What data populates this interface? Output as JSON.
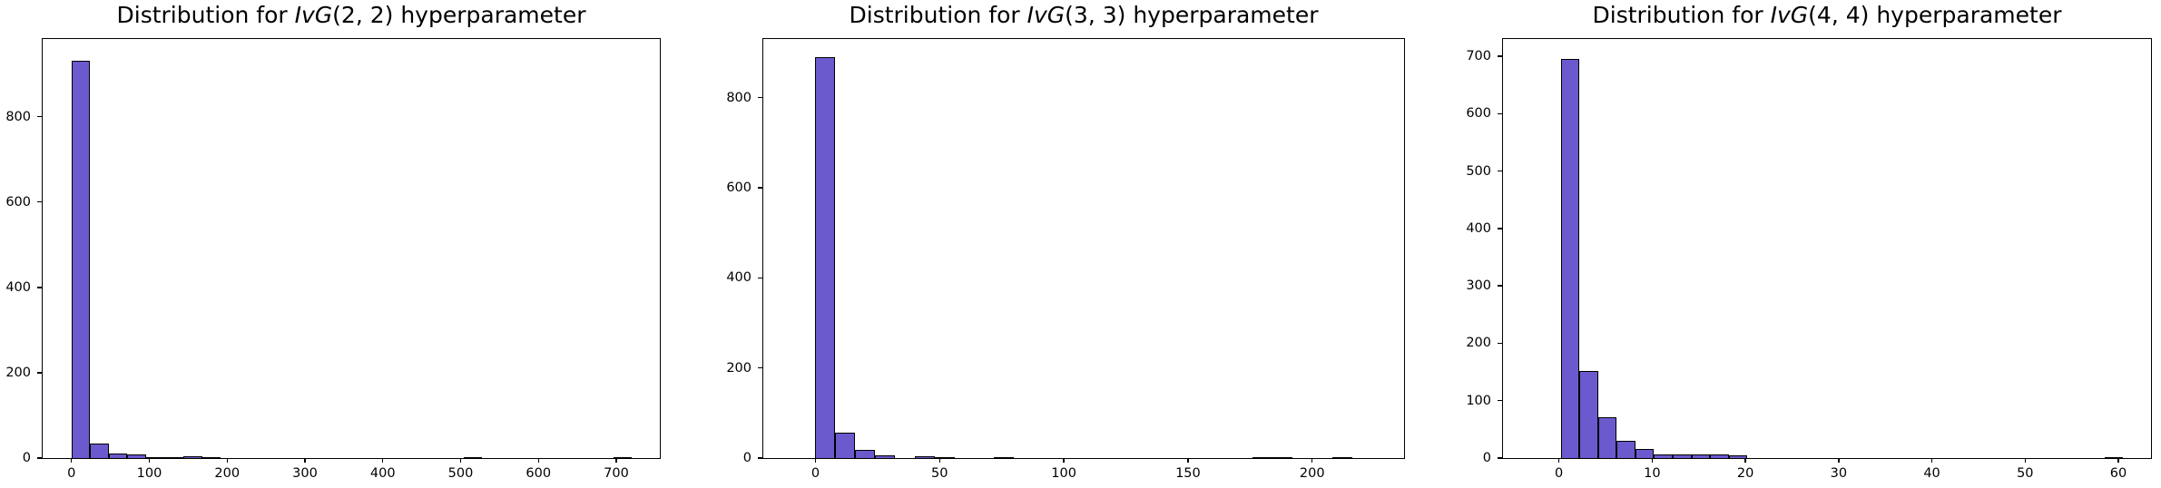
{
  "figure": {
    "background_color": "#ffffff",
    "bar_fill_color": "#6a5acd",
    "bar_edge_color": "#000000",
    "axis_color": "#000000",
    "text_color": "#000000"
  },
  "chart_data": [
    {
      "type": "bar",
      "subtype": "histogram",
      "title": "Distribution for IvG(2, 2) hyperparameter",
      "title_parts": {
        "prefix": "Distribution for ",
        "italic": "IvG",
        "args": "(2, 2)",
        "suffix": " hyperparameter"
      },
      "xlabel": "",
      "ylabel": "",
      "legend": null,
      "grid": false,
      "xlim": [
        -37,
        756
      ],
      "ylim": [
        0,
        982
      ],
      "xticks": [
        0,
        100,
        200,
        300,
        400,
        500,
        600,
        700
      ],
      "yticks": [
        0,
        200,
        400,
        600,
        800
      ],
      "bar_color": "#6a5acd",
      "edge_color": "#000000",
      "bins_note": "each bin is [x_start, x_end, count]",
      "bins": [
        [
          0,
          24,
          932
        ],
        [
          24,
          48,
          34
        ],
        [
          48,
          72,
          11
        ],
        [
          72,
          96,
          8
        ],
        [
          96,
          120,
          2
        ],
        [
          120,
          144,
          1
        ],
        [
          144,
          168,
          5
        ],
        [
          168,
          192,
          2
        ],
        [
          504,
          528,
          2
        ],
        [
          696,
          720,
          1
        ]
      ]
    },
    {
      "type": "bar",
      "subtype": "histogram",
      "title": "Distribution for IvG(3, 3) hyperparameter",
      "title_parts": {
        "prefix": "Distribution for ",
        "italic": "IvG",
        "args": "(3, 3)",
        "suffix": " hyperparameter"
      },
      "xlabel": "",
      "ylabel": "",
      "legend": null,
      "grid": false,
      "xlim": [
        -21,
        237
      ],
      "ylim": [
        0,
        930
      ],
      "xticks": [
        0,
        50,
        100,
        150,
        200
      ],
      "yticks": [
        0,
        200,
        400,
        600,
        800
      ],
      "bar_color": "#6a5acd",
      "edge_color": "#000000",
      "bins_note": "each bin is [x_start, x_end, count]",
      "bins": [
        [
          0,
          8,
          890
        ],
        [
          8,
          16,
          57
        ],
        [
          16,
          24,
          19
        ],
        [
          24,
          32,
          6
        ],
        [
          40,
          48,
          4
        ],
        [
          48,
          56,
          2
        ],
        [
          72,
          80,
          3
        ],
        [
          176,
          184,
          1
        ],
        [
          184,
          192,
          1
        ],
        [
          208,
          216,
          1
        ]
      ]
    },
    {
      "type": "bar",
      "subtype": "histogram",
      "title": "Distribution for IvG(4, 4) hyperparameter",
      "title_parts": {
        "prefix": "Distribution for ",
        "italic": "IvG",
        "args": "(4, 4)",
        "suffix": " hyperparameter"
      },
      "xlabel": "",
      "ylabel": "",
      "legend": null,
      "grid": false,
      "xlim": [
        -6,
        63.5
      ],
      "ylim": [
        0,
        730
      ],
      "xticks": [
        0,
        10,
        20,
        30,
        40,
        50,
        60
      ],
      "yticks": [
        0,
        100,
        200,
        300,
        400,
        500,
        600,
        700
      ],
      "bar_color": "#6a5acd",
      "edge_color": "#000000",
      "bins_note": "each bin is [x_start, x_end, count]",
      "bins": [
        [
          0.2,
          2.2,
          695
        ],
        [
          2.2,
          4.2,
          152
        ],
        [
          4.2,
          6.2,
          71
        ],
        [
          6.2,
          8.2,
          30
        ],
        [
          8.2,
          10.2,
          16
        ],
        [
          10.2,
          12.2,
          7
        ],
        [
          12.2,
          14.2,
          6
        ],
        [
          14.2,
          16.2,
          6
        ],
        [
          16.2,
          18.2,
          6
        ],
        [
          18.2,
          20.2,
          4
        ],
        [
          58.5,
          60.5,
          1
        ]
      ]
    }
  ]
}
